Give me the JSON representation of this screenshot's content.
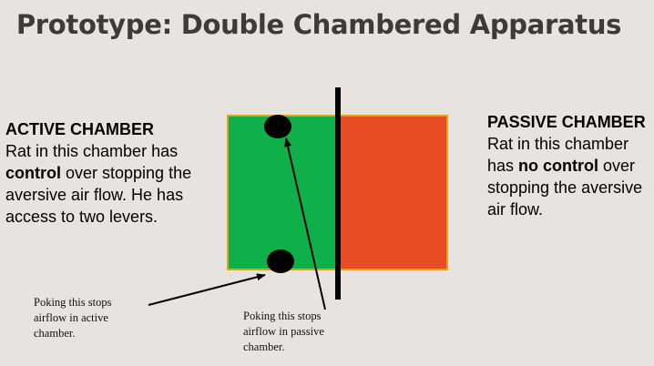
{
  "title": "Prototype: Double Chambered Apparatus",
  "active": {
    "heading": "ACTIVE CHAMBER",
    "line1": " Rat in this chamber has",
    "bold": "control",
    "line2": " over stopping the aversive air flow. He has access to two levers."
  },
  "passive": {
    "heading": "PASSIVE CHAMBER",
    "line1": " Rat in this chamber has ",
    "bold": "no control",
    "line2": " over stopping the aversive air flow."
  },
  "notes": {
    "left": "Poking this stops airflow in active chamber.",
    "mid": "Poking this stops airflow in passive chamber."
  },
  "colors": {
    "active_chamber": "#0fb04a",
    "passive_chamber": "#e84c25",
    "chamber_border": "#e0a020",
    "divider": "#000000",
    "background": "#e8e3df"
  }
}
